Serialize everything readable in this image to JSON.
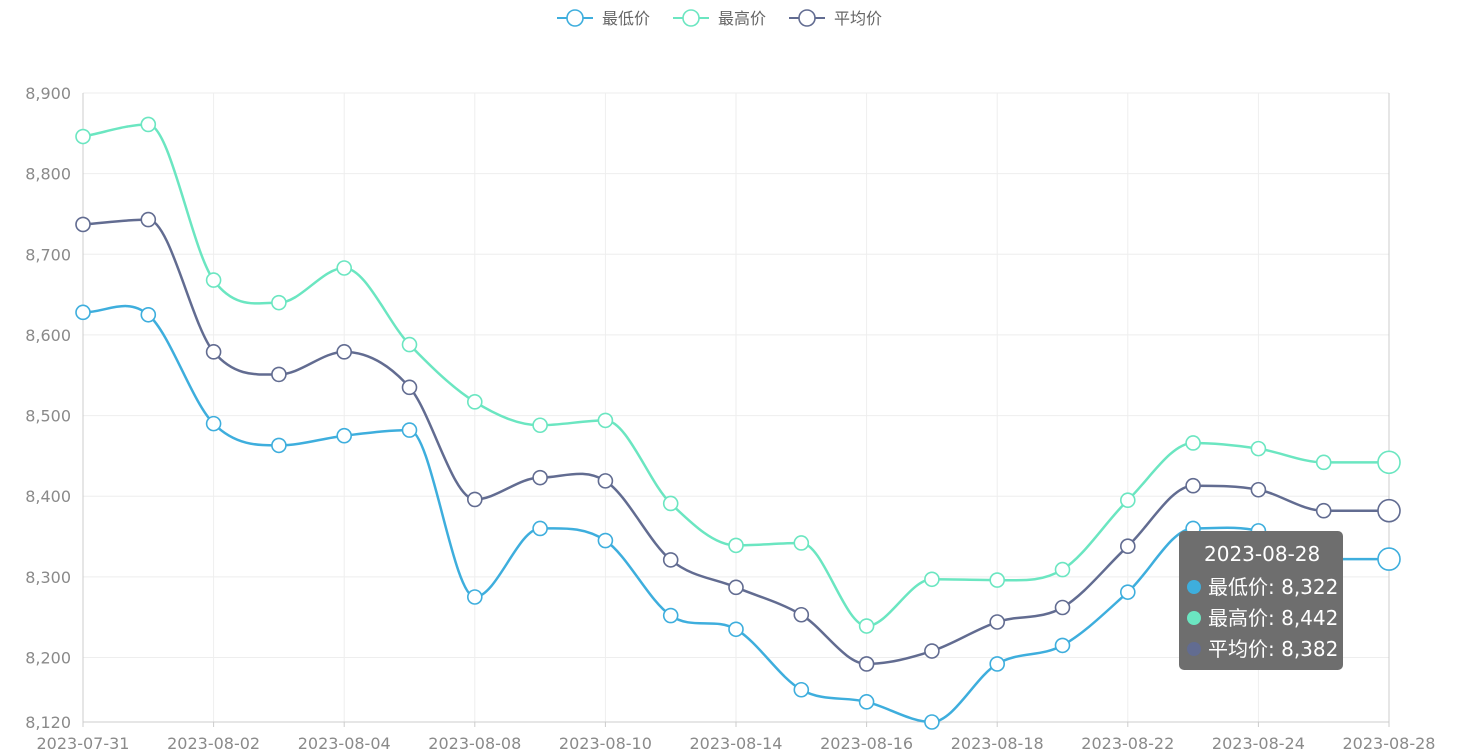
{
  "chart_data": {
    "type": "line",
    "x": [
      "2023-07-31",
      "2023-08-01",
      "2023-08-02",
      "2023-08-03",
      "2023-08-04",
      "2023-08-07",
      "2023-08-08",
      "2023-08-09",
      "2023-08-10",
      "2023-08-11",
      "2023-08-14",
      "2023-08-15",
      "2023-08-16",
      "2023-08-17",
      "2023-08-18",
      "2023-08-21",
      "2023-08-22",
      "2023-08-23",
      "2023-08-24",
      "2023-08-25",
      "2023-08-28"
    ],
    "xtick_labels": [
      "2023-07-31",
      "2023-08-02",
      "2023-08-04",
      "2023-08-08",
      "2023-08-10",
      "2023-08-14",
      "2023-08-16",
      "2023-08-18",
      "2023-08-22",
      "2023-08-24",
      "2023-08-28"
    ],
    "series": [
      {
        "name": "最低价",
        "color": "#3eaedd",
        "values": [
          8628,
          8625,
          8490,
          8463,
          8475,
          8482,
          8275,
          8360,
          8345,
          8252,
          8235,
          8160,
          8145,
          8120,
          8192,
          8215,
          8281,
          8360,
          8357,
          8322,
          8322
        ]
      },
      {
        "name": "最高价",
        "color": "#6be6c1",
        "values": [
          8846,
          8861,
          8668,
          8640,
          8683,
          8588,
          8517,
          8488,
          8494,
          8391,
          8339,
          8342,
          8239,
          8297,
          8296,
          8309,
          8395,
          8466,
          8459,
          8442,
          8442
        ]
      },
      {
        "name": "平均价",
        "color": "#626c91",
        "values": [
          8737,
          8743,
          8579,
          8551,
          8579,
          8535,
          8396,
          8423,
          8419,
          8321,
          8287,
          8253,
          8192,
          8208,
          8244,
          8262,
          8338,
          8413,
          8408,
          8382,
          8382
        ]
      }
    ],
    "ylim": [
      8120,
      8900
    ],
    "yticks": [
      8120,
      8200,
      8300,
      8400,
      8500,
      8600,
      8700,
      8800,
      8900
    ],
    "ytick_labels": [
      "8,120",
      "8,200",
      "8,300",
      "8,400",
      "8,500",
      "8,600",
      "8,700",
      "8,800",
      "8,900"
    ],
    "grid": true,
    "legend_position": "top-center",
    "title": "",
    "xlabel": "",
    "ylabel": ""
  },
  "tooltip": {
    "title": "2023-08-28",
    "rows": [
      {
        "label": "最低价: 8,322",
        "color": "#3eaedd"
      },
      {
        "label": "最高价: 8,442",
        "color": "#6be6c1"
      },
      {
        "label": "平均价: 8,382",
        "color": "#626c91"
      }
    ]
  },
  "theme": {
    "grid_color": "#eeeeee",
    "axis_color": "#cccccc",
    "tooltip_bg": "#6e6e6e"
  }
}
